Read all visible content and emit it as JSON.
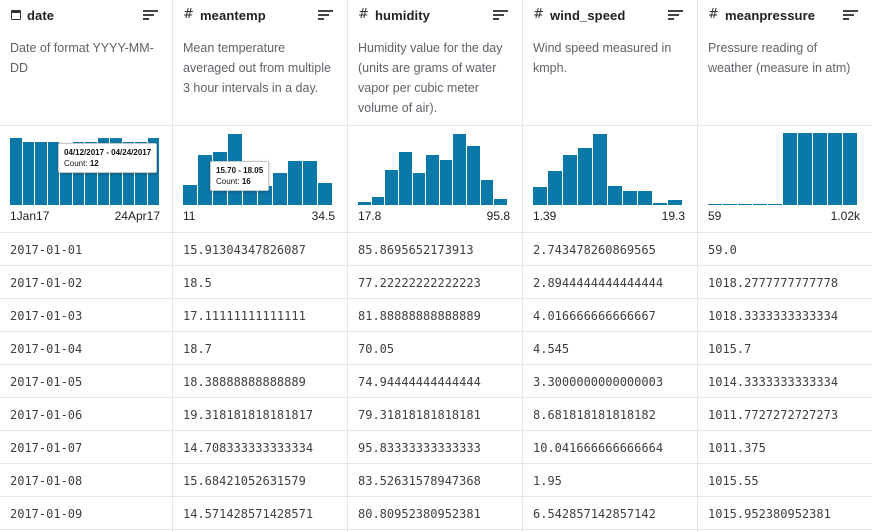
{
  "columns": [
    {
      "name": "date",
      "type_icon": "calendar-icon",
      "description": "Date of format YYYY-MM-DD",
      "range_min": "1Jan17",
      "range_max": "24Apr17",
      "histogram": [
        0.93,
        0.88,
        0.88,
        0.88,
        0.85,
        0.88,
        0.88,
        0.93,
        0.93,
        0.88,
        0.88,
        0.93
      ],
      "tooltip": {
        "range": "04/12/2017 - 04/24/2017",
        "count_label": "Count:",
        "count": "12"
      },
      "values": [
        "2017-01-01",
        "2017-01-02",
        "2017-01-03",
        "2017-01-04",
        "2017-01-05",
        "2017-01-06",
        "2017-01-07",
        "2017-01-08",
        "2017-01-09"
      ]
    },
    {
      "name": "meantemp",
      "type_icon": "hash-icon",
      "description": "Mean temperature averaged out from multiple 3 hour intervals in a day.",
      "range_min": "11",
      "range_max": "34.5",
      "histogram": [
        0.28,
        0.7,
        0.73,
        0.98,
        0.33,
        0.27,
        0.45,
        0.61,
        0.61,
        0.31
      ],
      "tooltip": {
        "range": "15.70 - 18.05",
        "count_label": "Count:",
        "count": "16"
      },
      "values": [
        "15.91304347826087",
        "18.5",
        "17.11111111111111",
        "18.7",
        "18.38888888888889",
        "19.318181818181817",
        "14.708333333333334",
        "15.68421052631579",
        "14.571428571428571"
      ]
    },
    {
      "name": "humidity",
      "type_icon": "hash-icon",
      "description": "Humidity value for the day (units are grams of water vapor per cubic meter volume of air).",
      "range_min": "17.8",
      "range_max": "95.8",
      "histogram": [
        0.04,
        0.11,
        0.49,
        0.73,
        0.45,
        0.7,
        0.62,
        0.99,
        0.82,
        0.35,
        0.09
      ],
      "values": [
        "85.8695652173913",
        "77.22222222222223",
        "81.88888888888889",
        "70.05",
        "74.94444444444444",
        "79.31818181818181",
        "95.83333333333333",
        "83.52631578947368",
        "80.80952380952381"
      ]
    },
    {
      "name": "wind_speed",
      "type_icon": "hash-icon",
      "description": "Wind speed measured in kmph.",
      "range_min": "1.39",
      "range_max": "19.3",
      "histogram": [
        0.25,
        0.47,
        0.7,
        0.79,
        0.99,
        0.27,
        0.2,
        0.2,
        0.03,
        0.07
      ],
      "values": [
        "2.743478260869565",
        "2.8944444444444444",
        "4.016666666666667",
        "4.545",
        "3.3000000000000003",
        "8.681818181818182",
        "10.041666666666664",
        "1.95",
        "6.542857142857142"
      ]
    },
    {
      "name": "meanpressure",
      "type_icon": "hash-icon",
      "description": "Pressure reading of weather (measure in atm)",
      "range_min": "59",
      "range_max": "1.02k",
      "histogram": [
        0.015,
        0.015,
        0.015,
        0.015,
        0.015,
        1.0,
        1.0,
        1.0,
        1.0,
        1.0
      ],
      "values": [
        "59.0",
        "1018.2777777777778",
        "1018.3333333333334",
        "1015.7",
        "1014.3333333333334",
        "1011.7727272727273",
        "1011.375",
        "1015.55",
        "1015.952380952381"
      ]
    }
  ],
  "colors": {
    "bar": "#0b79a8",
    "border": "#e6e6e6",
    "text": "#3c4043"
  }
}
